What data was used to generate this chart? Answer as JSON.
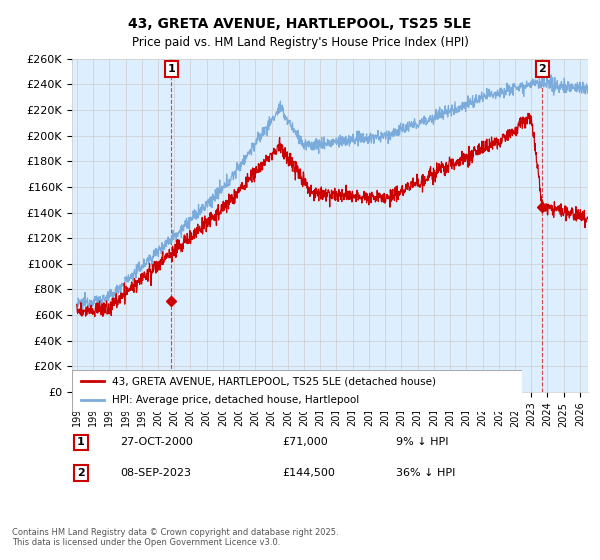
{
  "title": "43, GRETA AVENUE, HARTLEPOOL, TS25 5LE",
  "subtitle": "Price paid vs. HM Land Registry's House Price Index (HPI)",
  "legend_label_red": "43, GRETA AVENUE, HARTLEPOOL, TS25 5LE (detached house)",
  "legend_label_blue": "HPI: Average price, detached house, Hartlepool",
  "annotation1_date": "27-OCT-2000",
  "annotation1_price": "£71,000",
  "annotation1_hpi": "9% ↓ HPI",
  "annotation2_date": "08-SEP-2023",
  "annotation2_price": "£144,500",
  "annotation2_hpi": "36% ↓ HPI",
  "footer": "Contains HM Land Registry data © Crown copyright and database right 2025.\nThis data is licensed under the Open Government Licence v3.0.",
  "ylim": [
    0,
    260000
  ],
  "color_red": "#cc0000",
  "color_blue": "#7aabdb",
  "color_grid": "#cccccc",
  "color_bg_plot": "#ddeeff",
  "color_background": "#ffffff",
  "sale1_year": 2000.82,
  "sale1_price": 71000,
  "sale2_year": 2023.69,
  "sale2_price": 144500
}
